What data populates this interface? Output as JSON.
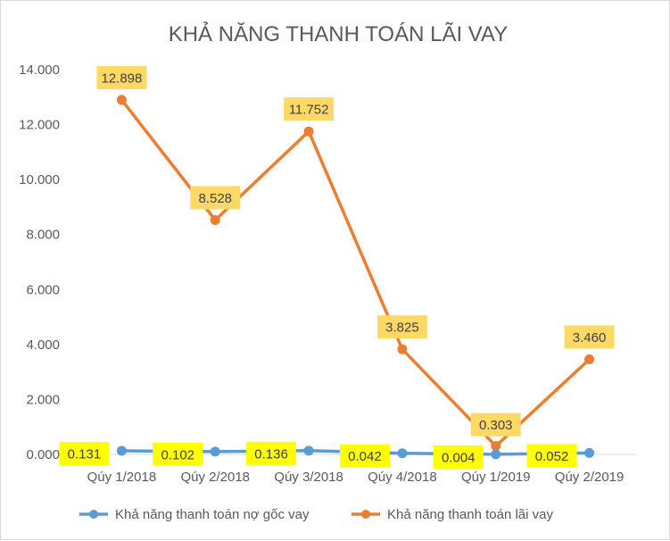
{
  "chart_data": {
    "type": "line",
    "title": "KHẢ NĂNG THANH TOÁN LÃI VAY",
    "xlabel": "",
    "ylabel": "",
    "categories": [
      "Qúy 1/2018",
      "Qúy 2/2018",
      "Qúy 3/2018",
      "Qúy 4/2018",
      "Qúy 1/2019",
      "Qúy 2/2019"
    ],
    "ylim": [
      0,
      14
    ],
    "yticks": [
      0,
      2,
      4,
      6,
      8,
      10,
      12,
      14
    ],
    "ytick_labels": [
      "0.000",
      "2.000",
      "4.000",
      "6.000",
      "8.000",
      "10.000",
      "12.000",
      "14.000"
    ],
    "grid": false,
    "legend": "bottom",
    "series": [
      {
        "name": "Khả năng thanh toán nợ gốc vay",
        "color": "#5b9bd5",
        "label_bg": "#ffff00",
        "values": [
          0.131,
          0.102,
          0.136,
          0.042,
          0.004,
          0.052
        ],
        "labels": [
          "0.131",
          "0.102",
          "0.136",
          "0.042",
          "0.004",
          "0.052"
        ]
      },
      {
        "name": "Khả năng thanh toán lãi vay",
        "color": "#ed7d31",
        "label_bg": "#ffd966",
        "values": [
          12.898,
          8.528,
          11.752,
          3.825,
          0.303,
          3.46
        ],
        "labels": [
          "12.898",
          "8.528",
          "11.752",
          "3.825",
          "0.303",
          "3.460"
        ]
      }
    ]
  }
}
